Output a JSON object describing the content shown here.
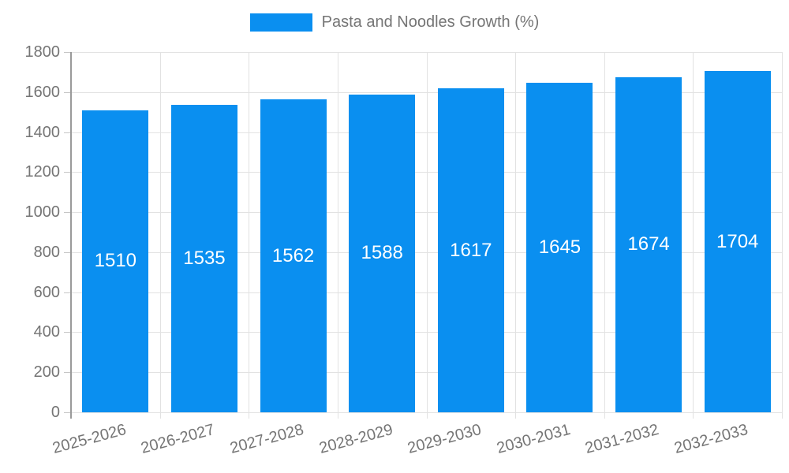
{
  "chart_data": {
    "type": "bar",
    "title": "",
    "legend": "Pasta and Noodles Growth (%)",
    "legend_position": "top-center",
    "categories": [
      "2025-2026",
      "2026-2027",
      "2027-2028",
      "2028-2029",
      "2029-2030",
      "2030-2031",
      "2031-2032",
      "2032-2033"
    ],
    "values": [
      1510,
      1535,
      1562,
      1588,
      1617,
      1645,
      1674,
      1704
    ],
    "xlabel": "",
    "ylabel": "",
    "ylim": [
      0,
      1800
    ],
    "yticks": [
      0,
      200,
      400,
      600,
      800,
      1000,
      1200,
      1400,
      1600,
      1800
    ],
    "grid": true,
    "bar_color": "#0a8ff0",
    "bar_label_color": "#ffffff",
    "axis_text_color": "#757575",
    "grid_color": "#e2e2e2",
    "tick_color": "#c6c6c6",
    "axis_line_color": "#9a9a9a"
  }
}
